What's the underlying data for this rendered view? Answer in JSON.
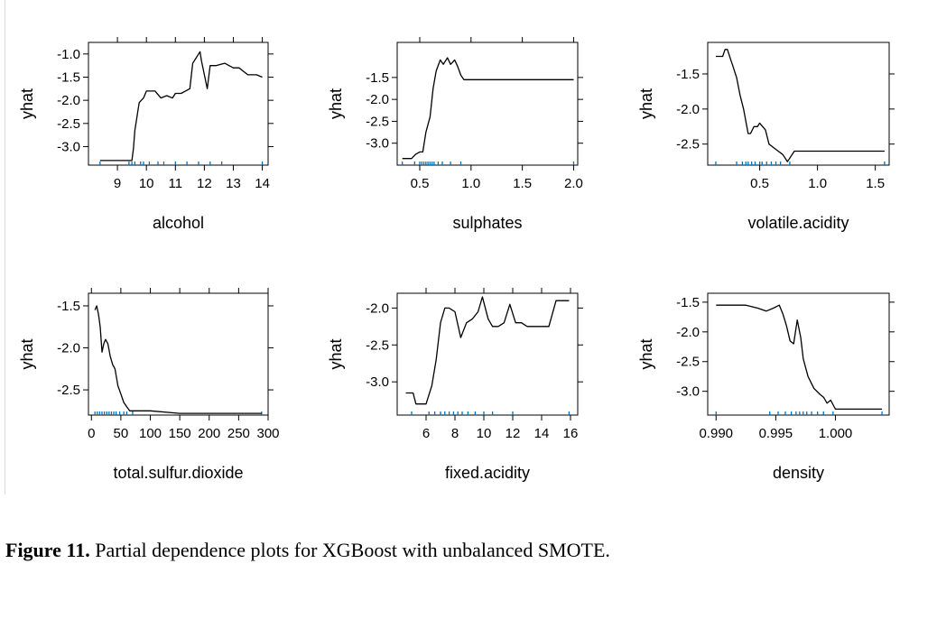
{
  "caption": {
    "label": "Figure 11.",
    "text": " Partial dependence plots for XGBoost with unbalanced SMOTE."
  },
  "colors": {
    "line": "#000000",
    "rug": "#0072bd",
    "frame": "#000000"
  },
  "chart_data": [
    {
      "type": "line",
      "xlabel": "alcohol",
      "ylabel": "yhat",
      "xlim": [
        8.0,
        14.2
      ],
      "ylim": [
        -3.4,
        -0.75
      ],
      "xticks": [
        9,
        10,
        11,
        12,
        13,
        14
      ],
      "yticks": [
        -1.0,
        -1.5,
        -2.0,
        -2.5,
        -3.0
      ],
      "ytick_labels": [
        "-1.0",
        "-1.5",
        "-2.0",
        "-2.5",
        "-3.0"
      ],
      "x": [
        8.4,
        9.5,
        9.55,
        9.6,
        9.75,
        9.9,
        10.0,
        10.3,
        10.5,
        10.7,
        10.9,
        11.0,
        11.2,
        11.5,
        11.6,
        11.8,
        11.85,
        11.9,
        12.1,
        12.2,
        12.4,
        12.7,
        13.0,
        13.2,
        13.5,
        13.8,
        14.0
      ],
      "y": [
        -3.3,
        -3.3,
        -3.05,
        -2.65,
        -2.05,
        -1.95,
        -1.8,
        -1.8,
        -1.95,
        -1.9,
        -1.95,
        -1.85,
        -1.85,
        -1.75,
        -1.2,
        -1.0,
        -0.95,
        -1.15,
        -1.75,
        -1.25,
        -1.25,
        -1.2,
        -1.3,
        -1.3,
        -1.45,
        -1.45,
        -1.5
      ],
      "rug": [
        8.4,
        9.4,
        9.5,
        9.6,
        9.8,
        9.9,
        10.1,
        10.4,
        10.6,
        11.0,
        11.4,
        11.8,
        12.2,
        12.6,
        14.0
      ]
    },
    {
      "type": "line",
      "xlabel": "sulphates",
      "ylabel": "yhat",
      "xlim": [
        0.28,
        2.04
      ],
      "ylim": [
        -3.5,
        -0.7
      ],
      "xticks": [
        0.5,
        1.0,
        1.5,
        2.0
      ],
      "xtick_labels": [
        "0.5",
        "1.0",
        "1.5",
        "2.0"
      ],
      "yticks": [
        -1.5,
        -2.0,
        -2.5,
        -3.0
      ],
      "ytick_labels": [
        "-1.5",
        "-2.0",
        "-2.5",
        "-3.0"
      ],
      "x": [
        0.33,
        0.42,
        0.46,
        0.5,
        0.53,
        0.56,
        0.6,
        0.63,
        0.66,
        0.7,
        0.73,
        0.77,
        0.8,
        0.82,
        0.84,
        0.87,
        0.9,
        0.93,
        0.98,
        1.2,
        1.5,
        2.0
      ],
      "y": [
        -3.35,
        -3.35,
        -3.25,
        -3.2,
        -3.2,
        -2.75,
        -2.4,
        -1.75,
        -1.35,
        -1.1,
        -1.2,
        -1.05,
        -1.2,
        -1.15,
        -1.1,
        -1.25,
        -1.45,
        -1.55,
        -1.55,
        -1.55,
        -1.55,
        -1.55
      ],
      "rug": [
        0.33,
        0.45,
        0.5,
        0.52,
        0.54,
        0.56,
        0.58,
        0.6,
        0.62,
        0.64,
        0.68,
        0.72,
        0.8,
        0.9,
        2.0
      ]
    },
    {
      "type": "line",
      "xlabel": "volatile.acidity",
      "ylabel": "yhat",
      "xlim": [
        0.05,
        1.62
      ],
      "ylim": [
        -2.8,
        -1.05
      ],
      "xticks": [
        0.5,
        1.0,
        1.5
      ],
      "xtick_labels": [
        "0.5",
        "1.0",
        "1.5"
      ],
      "yticks": [
        -1.5,
        -2.0,
        -2.5
      ],
      "ytick_labels": [
        "-1.5",
        "-2.0",
        "-2.5"
      ],
      "x": [
        0.12,
        0.18,
        0.2,
        0.22,
        0.25,
        0.27,
        0.3,
        0.33,
        0.36,
        0.4,
        0.42,
        0.45,
        0.48,
        0.5,
        0.55,
        0.58,
        0.62,
        0.66,
        0.7,
        0.74,
        0.76,
        0.8,
        1.0,
        1.3,
        1.58
      ],
      "y": [
        -1.25,
        -1.25,
        -1.15,
        -1.15,
        -1.3,
        -1.4,
        -1.55,
        -1.8,
        -2.0,
        -2.35,
        -2.35,
        -2.25,
        -2.25,
        -2.2,
        -2.3,
        -2.5,
        -2.55,
        -2.6,
        -2.65,
        -2.75,
        -2.7,
        -2.6,
        -2.6,
        -2.6,
        -2.6
      ],
      "rug": [
        0.12,
        0.3,
        0.35,
        0.38,
        0.4,
        0.43,
        0.46,
        0.5,
        0.52,
        0.56,
        0.6,
        0.64,
        0.68,
        0.76,
        1.58
      ]
    },
    {
      "type": "line",
      "xlabel": "total.sulfur.dioxide",
      "ylabel": "yhat",
      "xlim": [
        -5,
        300
      ],
      "ylim": [
        -2.8,
        -1.35
      ],
      "xticks": [
        0,
        50,
        100,
        150,
        200,
        250,
        300
      ],
      "yticks": [
        -1.5,
        -2.0,
        -2.5
      ],
      "ytick_labels": [
        "-1.5",
        "-2.0",
        "-2.5"
      ],
      "x": [
        6,
        9,
        12,
        15,
        18,
        21,
        24,
        28,
        32,
        36,
        40,
        45,
        50,
        55,
        60,
        65,
        70,
        80,
        100,
        150,
        200,
        250,
        289
      ],
      "y": [
        -1.55,
        -1.5,
        -1.6,
        -1.75,
        -2.05,
        -1.95,
        -1.9,
        -1.95,
        -2.1,
        -2.2,
        -2.25,
        -2.45,
        -2.55,
        -2.65,
        -2.7,
        -2.75,
        -2.75,
        -2.75,
        -2.75,
        -2.78,
        -2.78,
        -2.78,
        -2.78
      ],
      "rug": [
        6,
        10,
        14,
        18,
        22,
        26,
        30,
        34,
        38,
        42,
        48,
        55,
        60,
        70,
        289
      ]
    },
    {
      "type": "line",
      "xlabel": "fixed.acidity",
      "ylabel": "yhat",
      "xlim": [
        4.0,
        16.5
      ],
      "ylim": [
        -3.45,
        -1.8
      ],
      "xticks": [
        6,
        8,
        10,
        12,
        14,
        16
      ],
      "yticks": [
        -2.0,
        -2.5,
        -3.0
      ],
      "ytick_labels": [
        "-2.0",
        "-2.5",
        "-3.0"
      ],
      "x": [
        4.6,
        5.1,
        5.3,
        6.0,
        6.4,
        6.7,
        7.0,
        7.3,
        7.6,
        8.0,
        8.4,
        8.8,
        9.2,
        9.6,
        9.9,
        10.3,
        10.6,
        11.0,
        11.4,
        11.8,
        12.2,
        12.6,
        13.0,
        13.5,
        14.0,
        14.5,
        15.0,
        15.9
      ],
      "y": [
        -3.15,
        -3.15,
        -3.3,
        -3.3,
        -3.05,
        -2.7,
        -2.2,
        -2.0,
        -2.0,
        -2.05,
        -2.4,
        -2.2,
        -2.15,
        -2.05,
        -1.85,
        -2.15,
        -2.25,
        -2.25,
        -2.2,
        -1.95,
        -2.2,
        -2.2,
        -2.25,
        -2.25,
        -2.25,
        -2.25,
        -1.9,
        -1.9
      ],
      "rug": [
        5.0,
        6.2,
        6.6,
        7.0,
        7.3,
        7.6,
        7.9,
        8.2,
        8.5,
        8.9,
        9.4,
        10.0,
        10.6,
        12.0,
        15.9
      ]
    },
    {
      "type": "line",
      "xlabel": "density",
      "ylabel": "yhat",
      "xlim": [
        0.9893,
        1.0045
      ],
      "ylim": [
        -3.4,
        -1.35
      ],
      "xticks": [
        0.99,
        0.995,
        1.0
      ],
      "xtick_labels": [
        "0.990",
        "0.995",
        "1.000"
      ],
      "yticks": [
        -1.5,
        -2.0,
        -2.5,
        -3.0
      ],
      "ytick_labels": [
        "-1.5",
        "-2.0",
        "-2.5",
        "-3.0"
      ],
      "x": [
        0.99,
        0.9925,
        0.9935,
        0.9942,
        0.9948,
        0.9953,
        0.9956,
        0.9959,
        0.9962,
        0.9965,
        0.9968,
        0.9971,
        0.9973,
        0.9977,
        0.9982,
        0.9987,
        0.999,
        0.9993,
        0.9996,
        1.0,
        1.0015,
        1.002,
        1.0039
      ],
      "y": [
        -1.55,
        -1.55,
        -1.6,
        -1.65,
        -1.6,
        -1.55,
        -1.7,
        -1.9,
        -2.15,
        -2.2,
        -1.8,
        -2.1,
        -2.45,
        -2.75,
        -2.95,
        -3.05,
        -3.1,
        -3.2,
        -3.15,
        -3.3,
        -3.3,
        -3.3,
        -3.3
      ],
      "rug": [
        0.99,
        0.9945,
        0.9952,
        0.9958,
        0.9963,
        0.9967,
        0.997,
        0.9973,
        0.9976,
        0.998,
        0.9985,
        0.999,
        0.9998,
        1.0039
      ]
    }
  ]
}
